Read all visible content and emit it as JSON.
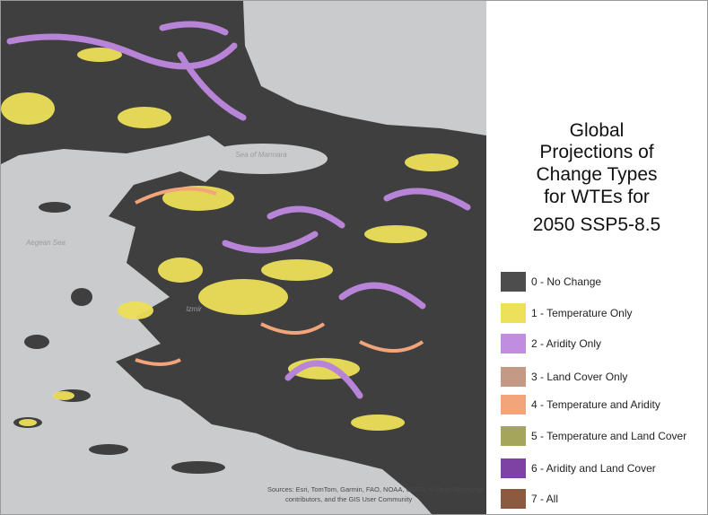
{
  "legend": {
    "title_lines": [
      "Global",
      "Projections of",
      "Change Types",
      "for WTEs for",
      "2050 SSP5-8.5"
    ],
    "items": [
      {
        "label": "0 - No Change",
        "color": "#4d4d4d"
      },
      {
        "label": "1 - Temperature Only",
        "color": "#ede05a"
      },
      {
        "label": "2 - Aridity Only",
        "color": "#c18de0"
      },
      {
        "label": "3 - Land Cover Only",
        "color": "#c49a86"
      },
      {
        "label": "4 - Temperature and Aridity",
        "color": "#f2a47b"
      },
      {
        "label": "5 - Temperature and Land Cover",
        "color": "#a5a65c"
      },
      {
        "label": "6 - Aridity and Land Cover",
        "color": "#7d42a3"
      },
      {
        "label": "7 - All",
        "color": "#8c5a3f"
      }
    ]
  },
  "map": {
    "labels": [
      "Sea of Marmara",
      "Aegean Sea",
      "Izmir"
    ],
    "attribution": [
      "Sources: Esri, TomTom, Garmin, FAO, NOAA, USGS, © OpenStreetMap",
      "contributors, and the GIS User Community"
    ]
  }
}
